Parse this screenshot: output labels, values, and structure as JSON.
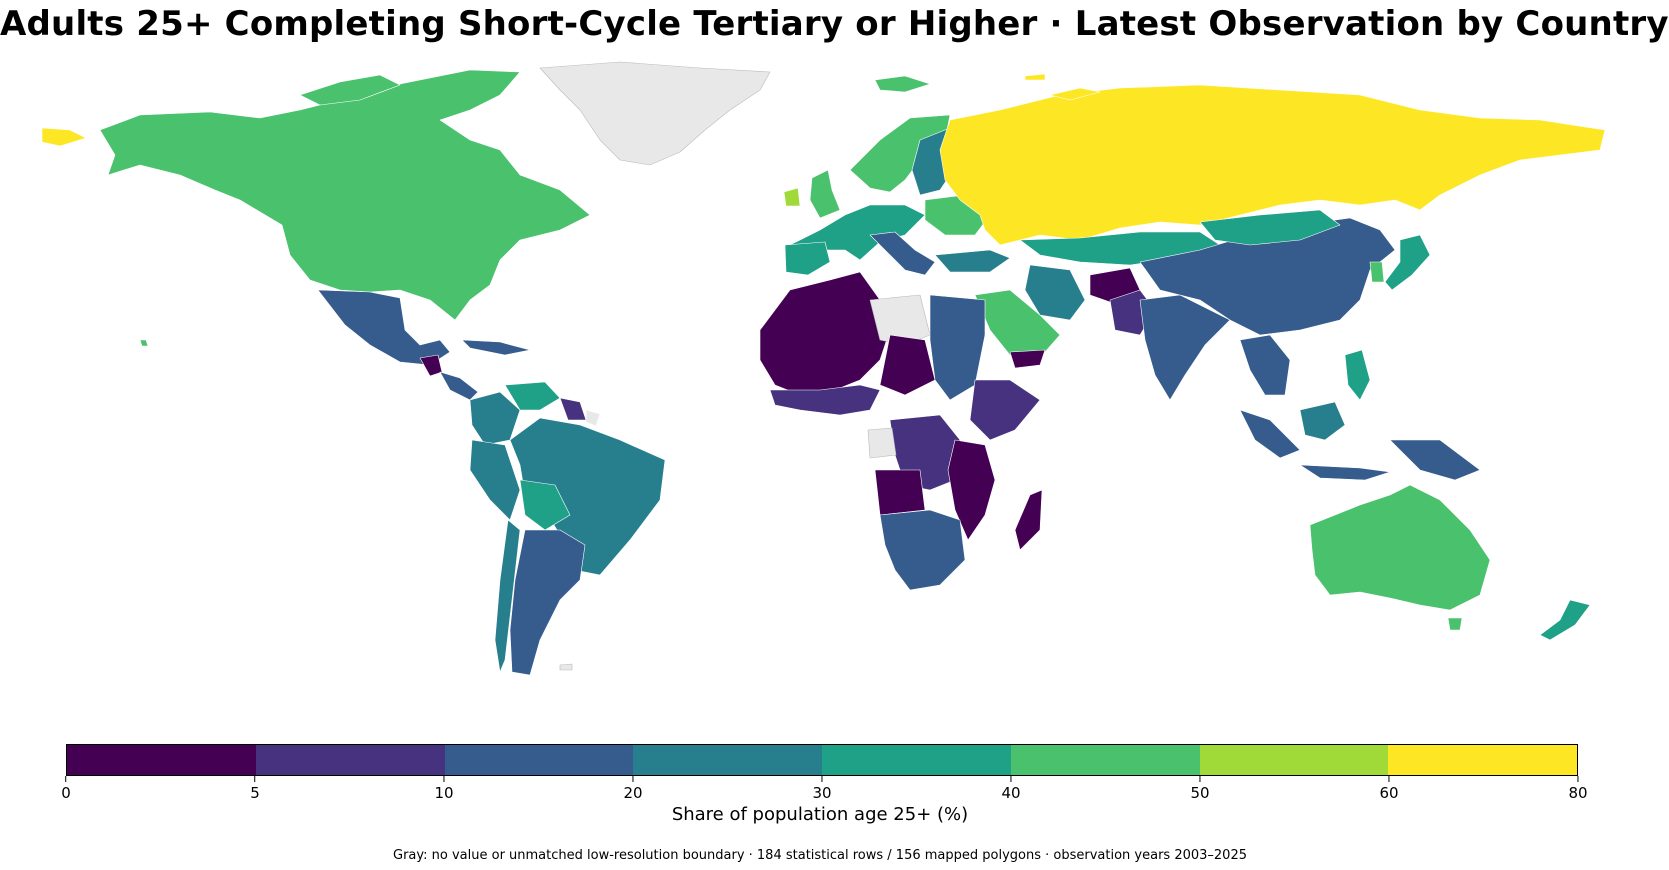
{
  "title": "Adults 25+ Completing Short-Cycle Tertiary or Higher · Latest Observation by Country",
  "colorbar": {
    "label": "Share of population age 25+ (%)",
    "ticks": [
      "0",
      "5",
      "10",
      "20",
      "30",
      "40",
      "50",
      "60",
      "80"
    ],
    "bins": [
      {
        "from": 0,
        "to": 5,
        "color": "#440154"
      },
      {
        "from": 5,
        "to": 10,
        "color": "#46327e"
      },
      {
        "from": 10,
        "to": 20,
        "color": "#365c8d"
      },
      {
        "from": 20,
        "to": 30,
        "color": "#277f8e"
      },
      {
        "from": 30,
        "to": 40,
        "color": "#1fa187"
      },
      {
        "from": 40,
        "to": 50,
        "color": "#4ac16d"
      },
      {
        "from": 50,
        "to": 60,
        "color": "#a0da39"
      },
      {
        "from": 60,
        "to": 80,
        "color": "#fde725"
      }
    ]
  },
  "no_data_color": "#e8e8e8",
  "footnote": "Gray: no value or unmatched low-resolution boundary · 184 statistical rows / 156 mapped polygons · observation years 2003–2025"
}
